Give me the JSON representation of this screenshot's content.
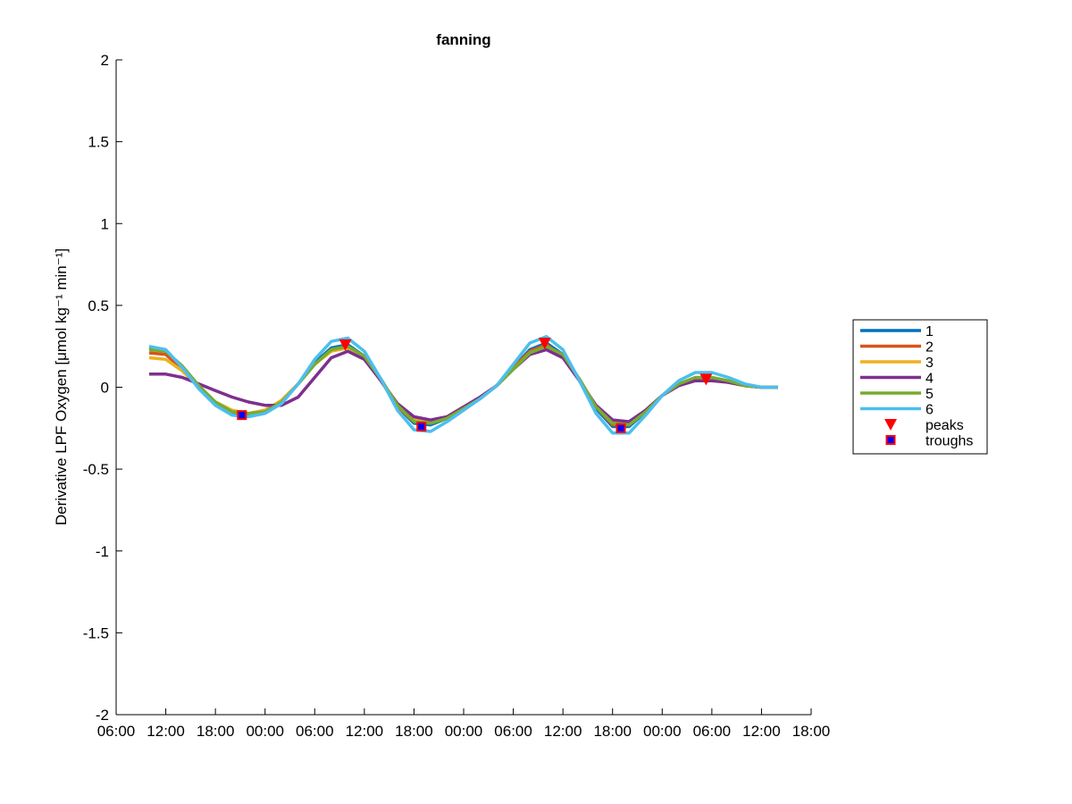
{
  "chart_data": {
    "type": "line",
    "title": "fanning",
    "y_label": "Derivative LPF Oxygen [μmol kg⁻¹ min⁻¹]",
    "xlim": [
      0,
      84
    ],
    "xticks": [
      {
        "value": 0,
        "label": "06:00"
      },
      {
        "value": 6,
        "label": "12:00"
      },
      {
        "value": 12,
        "label": "18:00"
      },
      {
        "value": 18,
        "label": "00:00"
      },
      {
        "value": 24,
        "label": "06:00"
      },
      {
        "value": 30,
        "label": "12:00"
      },
      {
        "value": 36,
        "label": "18:00"
      },
      {
        "value": 42,
        "label": "00:00"
      },
      {
        "value": 48,
        "label": "06:00"
      },
      {
        "value": 54,
        "label": "12:00"
      },
      {
        "value": 60,
        "label": "18:00"
      },
      {
        "value": 66,
        "label": "00:00"
      },
      {
        "value": 72,
        "label": "06:00"
      },
      {
        "value": 78,
        "label": "12:00"
      },
      {
        "value": 84,
        "label": "18:00"
      }
    ],
    "ylim": [
      -2,
      2
    ],
    "yticks": [
      -2,
      -1.5,
      -1,
      -0.5,
      0,
      0.5,
      1,
      1.5,
      2
    ],
    "grid": false,
    "legend": "outside-right",
    "x": [
      4,
      6,
      8,
      10,
      12,
      14,
      16,
      18,
      20,
      22,
      24,
      26,
      28,
      30,
      32,
      34,
      36,
      38,
      40,
      42,
      44,
      46,
      48,
      50,
      52,
      54,
      56,
      58,
      60,
      62,
      64,
      66,
      68,
      70,
      72,
      74,
      76,
      78,
      80
    ],
    "series": [
      {
        "name": "1",
        "color": "#0072BD",
        "values": [
          0.24,
          0.22,
          0.12,
          0.0,
          -0.1,
          -0.16,
          -0.17,
          -0.15,
          -0.09,
          0.02,
          0.15,
          0.24,
          0.26,
          0.19,
          0.05,
          -0.12,
          -0.22,
          -0.23,
          -0.19,
          -0.13,
          -0.07,
          0.01,
          0.12,
          0.23,
          0.27,
          0.2,
          0.04,
          -0.13,
          -0.24,
          -0.24,
          -0.15,
          -0.05,
          0.02,
          0.05,
          0.05,
          0.03,
          0.01,
          0.0,
          0.0
        ]
      },
      {
        "name": "2",
        "color": "#D95319",
        "values": [
          0.21,
          0.2,
          0.11,
          0.0,
          -0.09,
          -0.15,
          -0.16,
          -0.14,
          -0.08,
          0.02,
          0.14,
          0.23,
          0.25,
          0.18,
          0.04,
          -0.12,
          -0.21,
          -0.22,
          -0.18,
          -0.12,
          -0.06,
          0.01,
          0.12,
          0.22,
          0.26,
          0.19,
          0.04,
          -0.12,
          -0.23,
          -0.23,
          -0.14,
          -0.05,
          0.02,
          0.05,
          0.05,
          0.03,
          0.01,
          0.0,
          0.0
        ]
      },
      {
        "name": "3",
        "color": "#EDB120",
        "values": [
          0.18,
          0.17,
          0.1,
          0.0,
          -0.09,
          -0.14,
          -0.16,
          -0.14,
          -0.08,
          0.02,
          0.14,
          0.22,
          0.24,
          0.18,
          0.04,
          -0.11,
          -0.2,
          -0.21,
          -0.18,
          -0.12,
          -0.06,
          0.01,
          0.11,
          0.21,
          0.25,
          0.19,
          0.04,
          -0.12,
          -0.22,
          -0.22,
          -0.14,
          -0.05,
          0.02,
          0.05,
          0.05,
          0.03,
          0.01,
          0.0,
          0.0
        ]
      },
      {
        "name": "4",
        "color": "#7E2F8E",
        "values": [
          0.08,
          0.08,
          0.06,
          0.02,
          -0.02,
          -0.06,
          -0.09,
          -0.11,
          -0.11,
          -0.06,
          0.06,
          0.18,
          0.22,
          0.17,
          0.04,
          -0.1,
          -0.18,
          -0.2,
          -0.18,
          -0.12,
          -0.06,
          0.01,
          0.11,
          0.2,
          0.23,
          0.18,
          0.04,
          -0.11,
          -0.2,
          -0.21,
          -0.14,
          -0.05,
          0.01,
          0.04,
          0.04,
          0.03,
          0.01,
          0.0,
          0.0
        ]
      },
      {
        "name": "5",
        "color": "#77AC30",
        "values": [
          0.23,
          0.22,
          0.13,
          0.01,
          -0.09,
          -0.15,
          -0.16,
          -0.15,
          -0.09,
          0.02,
          0.14,
          0.23,
          0.25,
          0.19,
          0.05,
          -0.11,
          -0.21,
          -0.22,
          -0.19,
          -0.13,
          -0.07,
          0.01,
          0.11,
          0.21,
          0.25,
          0.2,
          0.05,
          -0.12,
          -0.22,
          -0.23,
          -0.15,
          -0.05,
          0.02,
          0.06,
          0.06,
          0.04,
          0.01,
          0.0,
          0.0
        ]
      },
      {
        "name": "6",
        "color": "#4DBEEE",
        "values": [
          0.25,
          0.23,
          0.12,
          -0.01,
          -0.11,
          -0.17,
          -0.18,
          -0.16,
          -0.1,
          0.02,
          0.17,
          0.28,
          0.3,
          0.22,
          0.05,
          -0.14,
          -0.26,
          -0.27,
          -0.21,
          -0.14,
          -0.07,
          0.01,
          0.14,
          0.27,
          0.31,
          0.23,
          0.04,
          -0.16,
          -0.28,
          -0.28,
          -0.17,
          -0.05,
          0.04,
          0.09,
          0.09,
          0.06,
          0.02,
          0.0,
          0.0
        ]
      },
      {
        "name": "peaks",
        "marker": "triangle-down",
        "color": "#ff0000",
        "x": [
          27.7,
          51.8,
          71.3
        ],
        "values": [
          0.26,
          0.27,
          0.05
        ]
      },
      {
        "name": "troughs",
        "marker": "square",
        "color": "#ff0000",
        "fill": "#0000ff",
        "x": [
          15.2,
          36.9,
          61
        ],
        "values": [
          -0.17,
          -0.24,
          -0.25
        ]
      }
    ]
  }
}
